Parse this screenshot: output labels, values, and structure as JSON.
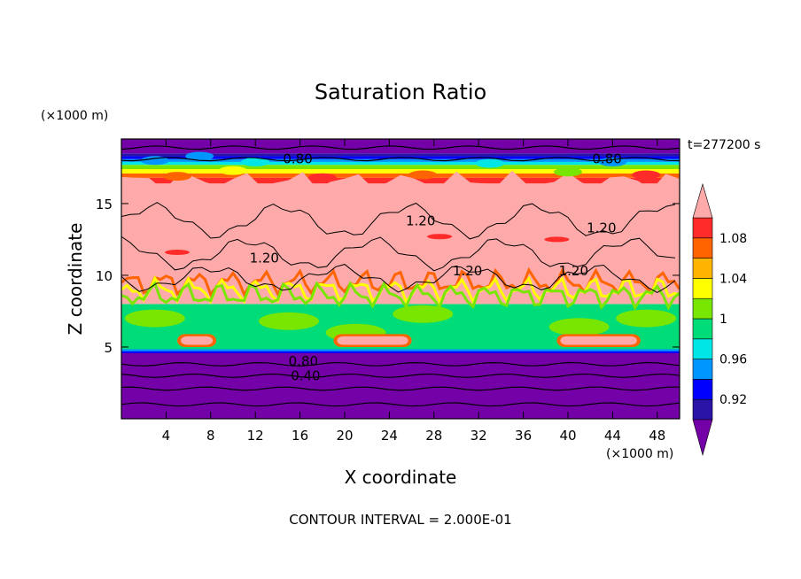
{
  "chart_data": {
    "type": "heatmap",
    "title": "Saturation Ratio",
    "xlabel": "X coordinate",
    "ylabel": "Z coordinate",
    "x_unit": "(×1000 m)",
    "y_unit": "(×1000 m)",
    "time_label": "t=277200 s",
    "footer": "CONTOUR INTERVAL = 2.000E-01",
    "xlim": [
      0,
      50
    ],
    "ylim": [
      0,
      19.5
    ],
    "x_ticks": [
      4,
      8,
      12,
      16,
      20,
      24,
      28,
      32,
      36,
      40,
      44,
      48
    ],
    "y_ticks": [
      5,
      10,
      15
    ],
    "colorbar": {
      "tick_labels": [
        "1.08",
        "1.04",
        "1",
        "0.96",
        "0.92"
      ],
      "levels": [
        0.9,
        0.92,
        0.94,
        0.96,
        0.98,
        1.0,
        1.02,
        1.04,
        1.06,
        1.08,
        1.1
      ],
      "colors": [
        "#7400a8",
        "#2a14a8",
        "#0000ff",
        "#0096ff",
        "#00e6e6",
        "#00dc78",
        "#78e600",
        "#ffff00",
        "#ffb400",
        "#ff6400",
        "#ff2a2a",
        "#ffaaaa"
      ],
      "extend": "both"
    },
    "contour_labels": [
      {
        "text": "0.80",
        "x": 15.8,
        "y": 18.1
      },
      {
        "text": "0.80",
        "x": 43.5,
        "y": 18.1
      },
      {
        "text": "1.20",
        "x": 26.8,
        "y": 13.8
      },
      {
        "text": "1.20",
        "x": 43.0,
        "y": 13.3
      },
      {
        "text": "1.20",
        "x": 12.8,
        "y": 11.2
      },
      {
        "text": "1.20",
        "x": 31.0,
        "y": 10.3
      },
      {
        "text": "1.20",
        "x": 40.5,
        "y": 10.3
      },
      {
        "text": "0.80",
        "x": 16.3,
        "y": 4.0
      },
      {
        "text": "0.40",
        "x": 16.5,
        "y": 3.0
      }
    ],
    "field_layers": [
      {
        "level": "<0.90",
        "z_from": 0,
        "z_to": 4.6
      },
      {
        "level": "1.00",
        "z_from": 4.6,
        "z_to": 8.0
      },
      {
        "level": ">1.10",
        "z_from": 8.0,
        "z_to": 16.5
      },
      {
        "level": "<0.90",
        "z_from": 17.5,
        "z_to": 19.5
      }
    ]
  }
}
